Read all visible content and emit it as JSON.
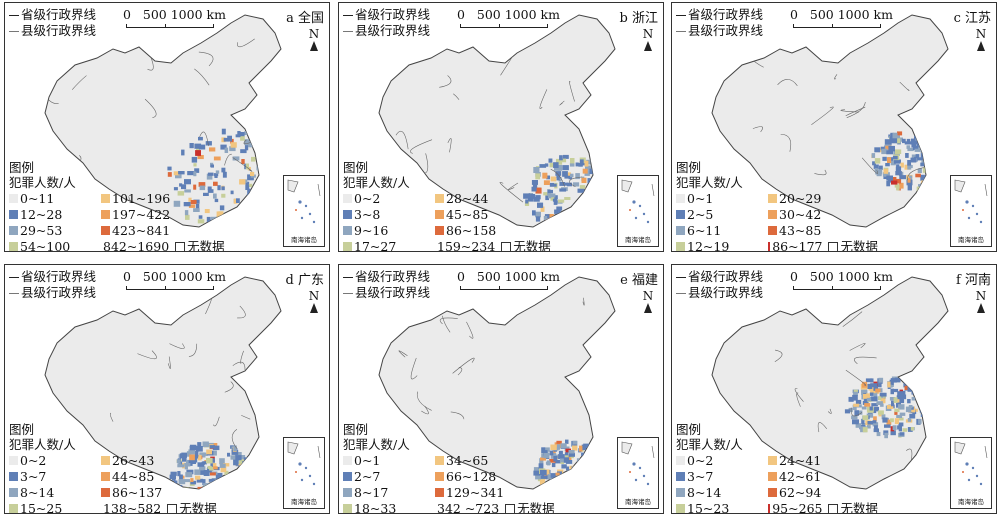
{
  "common": {
    "province_boundary": "省级行政界线",
    "county_boundary": "县级行政界线",
    "scale_labels": "0   500 1000 km",
    "north": "N",
    "legend_title": "图例",
    "legend_subtitle": "犯罪人数/人",
    "no_data": "无数据",
    "inset_label": "南海诸岛",
    "colors": [
      "#ebebeb",
      "#5f7fb6",
      "#8fa6bf",
      "#c7cf9a",
      "#f2c680",
      "#eda05c",
      "#dd6a3c",
      "#c9302c"
    ]
  },
  "panels": [
    {
      "title": "a 全国",
      "classes": [
        "0~11",
        "12~28",
        "29~53",
        "54~100",
        "101~196",
        "197~422",
        "423~841",
        "842~1690"
      ]
    },
    {
      "title": "b 浙江",
      "classes": [
        "0~2",
        "3~8",
        "9~16",
        "17~27",
        "28~44",
        "45~85",
        "86~158",
        "159~234"
      ]
    },
    {
      "title": "c 江苏",
      "classes": [
        "0~1",
        "2~5",
        "6~11",
        "12~19",
        "20~29",
        "30~42",
        "43~85",
        "86~177"
      ]
    },
    {
      "title": "d 广东",
      "classes": [
        "0~2",
        "3~7",
        "8~14",
        "15~25",
        "26~43",
        "44~85",
        "86~137",
        "138~582"
      ]
    },
    {
      "title": "e 福建",
      "classes": [
        "0~1",
        "2~7",
        "8~17",
        "18~33",
        "34~65",
        "66~128",
        "129~341",
        "342 ~723"
      ]
    },
    {
      "title": "f 河南",
      "classes": [
        "0~2",
        "3~7",
        "8~14",
        "15~23",
        "24~41",
        "42~61",
        "62~94",
        "95~265"
      ]
    }
  ]
}
